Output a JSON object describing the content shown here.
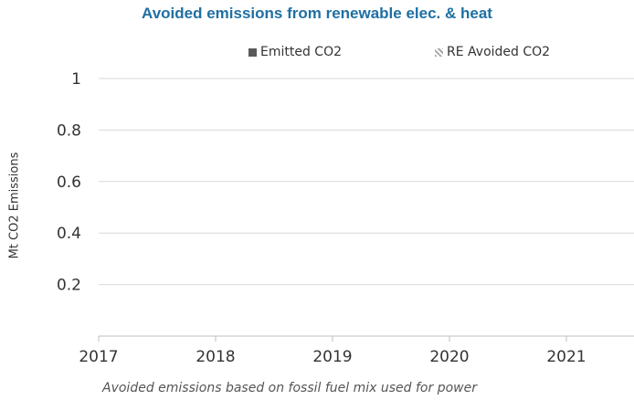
{
  "chart_data": {
    "type": "bar",
    "title": "Avoided emissions from renewable elec. & heat",
    "ylabel": "Mt CO2 Emissions",
    "xlabel": "",
    "categories": [
      "2017",
      "2018",
      "2019",
      "2020",
      "2021"
    ],
    "y_tick_labels": [
      "0.2",
      "0.4",
      "0.6",
      "0.8",
      "1"
    ],
    "y_tick_values": [
      0.2,
      0.4,
      0.6,
      0.8,
      1
    ],
    "ylim": [
      0,
      1
    ],
    "grid": true,
    "legend_position": "top",
    "series": [
      {
        "name": "Emitted CO2",
        "values": [
          null,
          null,
          null,
          null,
          null
        ],
        "color": "#595959"
      },
      {
        "name": "RE Avoided CO2",
        "values": [
          null,
          null,
          null,
          null,
          null
        ],
        "color": "#a6a6a6"
      }
    ],
    "footnote": "Avoided emissions based on fossil fuel mix used for power"
  },
  "colors": {
    "title": "#1f6fa3",
    "gridline": "#d9d9d9",
    "axis": "#bfbfbf",
    "text": "#333333"
  }
}
